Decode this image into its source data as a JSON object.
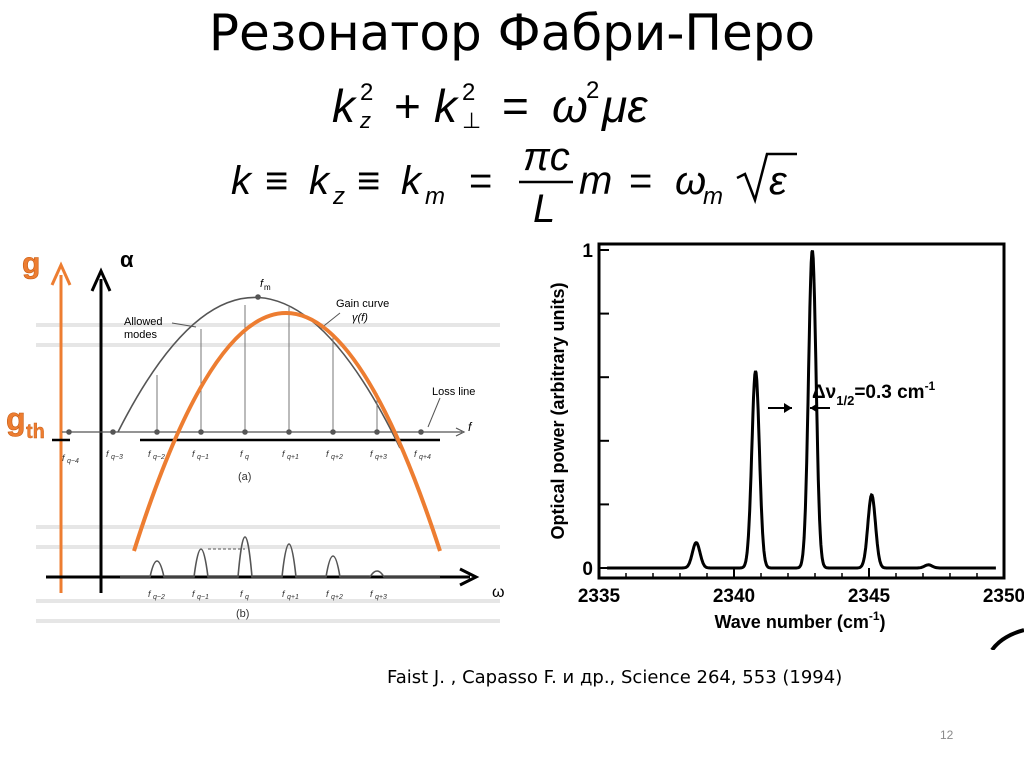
{
  "title": "Резонатор Фабри-Перо",
  "equations": {
    "eq1": "k_z² + k_⊥² = ω² μ ε",
    "eq2": "k ≡ k_z ≡ k_m = (πc / L) m = ω_m √ε"
  },
  "left_figure": {
    "labels": {
      "g": "g",
      "g_th": "g",
      "g_th_sub": "th",
      "alpha": "α",
      "omega": "ω",
      "fm": "f",
      "fm_sub": "m",
      "gain_curve": "Gain curve",
      "gamma_f": "γ(f)",
      "allowed_modes_1": "Allowed",
      "allowed_modes_2": "modes",
      "loss_line": "Loss line",
      "f_axis": "f",
      "panel_a": "(a)",
      "panel_b": "(b)"
    },
    "tick_labels_a": [
      "f",
      "f",
      "f",
      "f",
      "f",
      "f",
      "f",
      "f",
      "f"
    ],
    "tick_subs_a": [
      "q−4",
      "q−3",
      "q−2",
      "q−1",
      "q",
      "q+1",
      "q+2",
      "q+3",
      "q+4"
    ],
    "tick_labels_b": [
      "f",
      "f",
      "f",
      "f",
      "f",
      "f"
    ],
    "tick_subs_b": [
      "q−2",
      "q−1",
      "q",
      "q+1",
      "q+2",
      "q+3"
    ],
    "colors": {
      "orange": "#ed7d31",
      "gth": "#c55a11"
    }
  },
  "chart_data": {
    "type": "line",
    "xlabel": "Wave number (cm",
    "xlabel_sup": "-1",
    "xlabel_end": ")",
    "ylabel": "Optical power (arbitrary units)",
    "xlim": [
      2335,
      2350
    ],
    "ylim": [
      0,
      1
    ],
    "x_ticks": [
      "2335",
      "2340",
      "2345",
      "2350"
    ],
    "y_ticks": [
      "0",
      "1"
    ],
    "peaks": [
      {
        "x": 2338.6,
        "y": 0.08
      },
      {
        "x": 2340.8,
        "y": 0.62
      },
      {
        "x": 2342.9,
        "y": 1.0
      },
      {
        "x": 2345.1,
        "y": 0.23
      },
      {
        "x": 2347.2,
        "y": 0.01
      }
    ],
    "annotation": {
      "text": "Δν",
      "sub": "1/2",
      "value": "=0.3 cm",
      "sup": "-1"
    }
  },
  "citation": "Faist J. , Capasso F. и др., Science 264, 553 (1994)",
  "slide_number": "12"
}
